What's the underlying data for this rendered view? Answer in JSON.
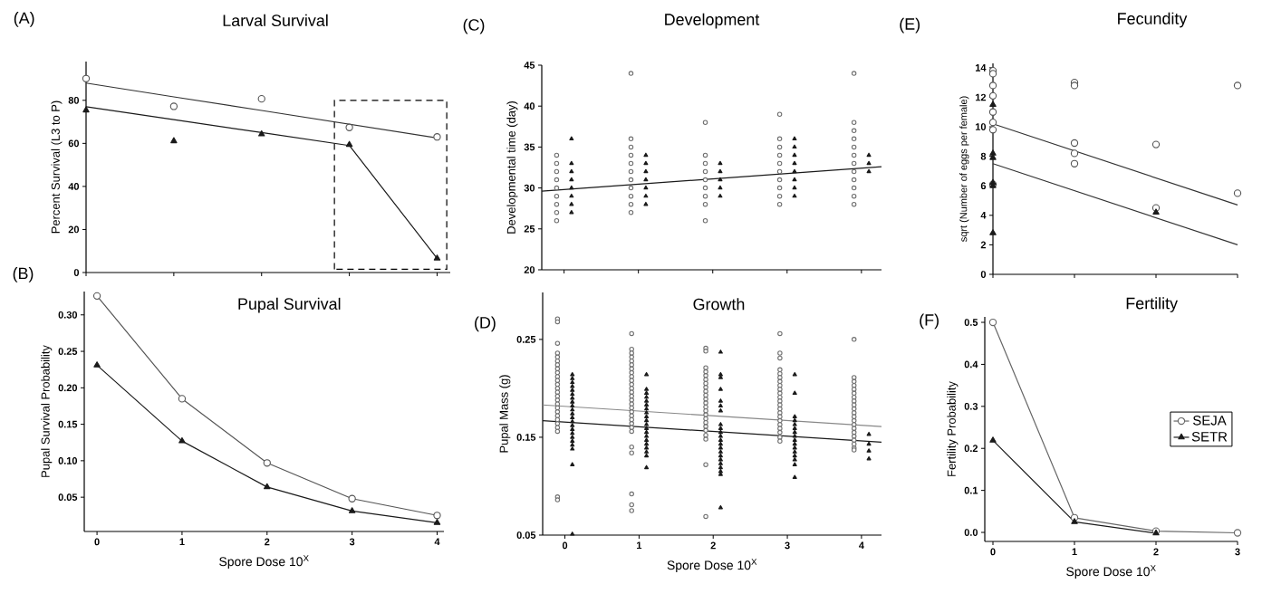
{
  "chart_data": [
    {
      "type": "scatter",
      "title": "Larval Survival",
      "ylabel": "Percent Survival (L3 to P)",
      "annotations": [
        "(A)"
      ],
      "categories": [
        null,
        null,
        null,
        null,
        null
      ],
      "ylim": [
        0,
        98
      ],
      "yticks": [
        0,
        20,
        40,
        60,
        80
      ],
      "tick_labels": "y",
      "series": [
        {
          "type": "line",
          "marker": "none",
          "color": "#333333",
          "values": [
            88,
            81.6,
            75.3,
            68.9,
            62.5
          ]
        },
        {
          "type": "line",
          "marker": "none",
          "color": "#1a1a1a",
          "values": [
            77,
            71,
            65,
            59,
            6.6
          ]
        },
        {
          "type": "scatter",
          "marker": "circle",
          "color": "#555555",
          "values": [
            90.1,
            77.2,
            80.7,
            67.4,
            63
          ]
        },
        {
          "type": "scatter",
          "marker": "triangle",
          "color": "#1a1a1a",
          "values": [
            75.4,
            61.1,
            64.3,
            59.4,
            6.6
          ]
        }
      ]
    },
    {
      "type": "line",
      "title": "Pupal Survival",
      "xlabel": "Spore Dose 10$^{X}$",
      "ylabel": "Pupal Survival Probability",
      "annotations": [
        "(B)"
      ],
      "xlim": [
        -0.15,
        4.08
      ],
      "ylim": [
        0.003,
        0.332
      ],
      "xticks": [
        0,
        1,
        2,
        3,
        4
      ],
      "yticks": [
        {
          "value": 0.05,
          "label": "0.05"
        },
        {
          "value": 0.1,
          "label": "0.10"
        },
        {
          "value": 0.15,
          "label": "0.15"
        },
        {
          "value": 0.2,
          "label": "0.20"
        },
        {
          "value": 0.25,
          "label": "0.25"
        },
        {
          "value": 0.3,
          "label": "0.30"
        }
      ],
      "series": [
        {
          "marker": "circle",
          "color": "#555555",
          "x": [
            0,
            1,
            2,
            3,
            4
          ],
          "values": [
            0.326,
            0.185,
            0.097,
            0.048,
            0.025
          ]
        },
        {
          "marker": "triangle",
          "color": "#1a1a1a",
          "x": [
            0,
            1,
            2,
            3,
            4
          ],
          "values": [
            0.231,
            0.127,
            0.064,
            0.031,
            0.015
          ]
        }
      ]
    },
    {
      "type": "scatter",
      "title": "Development",
      "ylabel": "Developmental time (day)",
      "annotations": [
        "(C)"
      ],
      "xlim": [
        -0.3,
        4.27
      ],
      "ylim": [
        20,
        45
      ],
      "xticks": [
        {
          "value": 0,
          "label": null
        },
        {
          "value": 1,
          "label": null
        },
        {
          "value": 2,
          "label": null
        },
        {
          "value": 3,
          "label": null
        },
        {
          "value": 4,
          "label": null
        }
      ],
      "yticks": [
        20,
        25,
        30,
        35,
        40,
        45
      ],
      "tick_labels": "y",
      "series": [
        {
          "marker": "circle",
          "color": "#707070",
          "x": [
            -0.1,
            -0.1,
            -0.1,
            -0.1,
            -0.1,
            -0.1,
            -0.1,
            -0.1,
            -0.1,
            0.9,
            0.9,
            0.9,
            0.9,
            0.9,
            0.9,
            0.9,
            0.9,
            0.9,
            0.9,
            0.9,
            1.9,
            1.9,
            1.9,
            1.9,
            1.9,
            1.9,
            1.9,
            1.9,
            1.9,
            2.9,
            2.9,
            2.9,
            2.9,
            2.9,
            2.9,
            2.9,
            2.9,
            2.9,
            2.9,
            3.9,
            3.9,
            3.9,
            3.9,
            3.9,
            3.9,
            3.9,
            3.9,
            3.9,
            3.9,
            3.9,
            3.9
          ],
          "values": [
            26,
            27,
            28,
            29,
            30,
            31,
            32,
            33,
            34,
            44,
            36,
            35,
            34,
            33,
            32,
            31,
            30,
            29,
            28,
            27,
            38,
            34,
            33,
            32,
            31,
            30,
            29,
            28,
            26,
            39,
            36,
            35,
            34,
            33,
            32,
            31,
            30,
            29,
            28,
            44,
            38,
            37,
            36,
            35,
            34,
            33,
            32,
            31,
            30,
            29,
            28
          ]
        },
        {
          "marker": "triangle",
          "color": "#1a1a1a",
          "x": [
            0.1,
            0.1,
            0.1,
            0.1,
            0.1,
            0.1,
            0.1,
            0.1,
            1.1,
            1.1,
            1.1,
            1.1,
            1.1,
            1.1,
            1.1,
            2.1,
            2.1,
            2.1,
            2.1,
            2.1,
            3.1,
            3.1,
            3.1,
            3.1,
            3.1,
            3.1,
            3.1,
            3.1,
            4.1,
            4.1,
            4.1
          ],
          "values": [
            36,
            33,
            32,
            31,
            30,
            29,
            28,
            27,
            34,
            33,
            32,
            31,
            30,
            29,
            28,
            33,
            32,
            31,
            30,
            29,
            36,
            35,
            34,
            33,
            32,
            31,
            30,
            29,
            34,
            33,
            32
          ]
        },
        {
          "type": "line",
          "marker": "none",
          "color": "#1a1a1a",
          "x": [
            -0.3,
            4.27
          ],
          "values": [
            29.6,
            32.6
          ]
        }
      ]
    },
    {
      "type": "scatter",
      "title": "Growth",
      "xlabel": "Spore Dose 10$^{X}$",
      "ylabel": "Pupal Mass (g)",
      "annotations": [
        "(D)"
      ],
      "xlim": [
        -0.3,
        4.27
      ],
      "ylim": [
        0.05,
        0.298
      ],
      "xticks": [
        0,
        1,
        2,
        3,
        4
      ],
      "yticks": [
        {
          "value": 0.05,
          "label": "0.05"
        },
        {
          "value": 0.15,
          "label": "0.15"
        },
        {
          "value": 0.25,
          "label": "0.25"
        }
      ],
      "series": [
        {
          "marker": "circle",
          "color": "#707070",
          "x": [
            -0.1,
            -0.1,
            -0.1,
            -0.1,
            -0.1,
            -0.1,
            -0.1,
            -0.1,
            -0.1,
            -0.1,
            -0.1,
            -0.1,
            -0.1,
            -0.1,
            -0.1,
            -0.1,
            -0.1,
            -0.1,
            -0.1,
            -0.1,
            -0.1,
            -0.1,
            -0.1,
            -0.1,
            -0.1,
            -0.1,
            0.9,
            0.9,
            0.9,
            0.9,
            0.9,
            0.9,
            0.9,
            0.9,
            0.9,
            0.9,
            0.9,
            0.9,
            0.9,
            0.9,
            0.9,
            0.9,
            0.9,
            0.9,
            0.9,
            0.9,
            0.9,
            0.9,
            0.9,
            0.9,
            0.9,
            0.9,
            0.9,
            0.9,
            1.9,
            1.9,
            1.9,
            1.9,
            1.9,
            1.9,
            1.9,
            1.9,
            1.9,
            1.9,
            1.9,
            1.9,
            1.9,
            1.9,
            1.9,
            1.9,
            1.9,
            1.9,
            1.9,
            1.9,
            1.9,
            1.9,
            1.9,
            2.9,
            2.9,
            2.9,
            2.9,
            2.9,
            2.9,
            2.9,
            2.9,
            2.9,
            2.9,
            2.9,
            2.9,
            2.9,
            2.9,
            2.9,
            2.9,
            2.9,
            2.9,
            2.9,
            2.9,
            2.9,
            2.9,
            3.9,
            3.9,
            3.9,
            3.9,
            3.9,
            3.9,
            3.9,
            3.9,
            3.9,
            3.9,
            3.9,
            3.9,
            3.9,
            3.9,
            3.9,
            3.9,
            3.9,
            3.9,
            3.9,
            3.9,
            3.9
          ],
          "values": [
            0.271,
            0.268,
            0.246,
            0.236,
            0.232,
            0.228,
            0.224,
            0.22,
            0.216,
            0.212,
            0.208,
            0.204,
            0.2,
            0.196,
            0.192,
            0.188,
            0.184,
            0.18,
            0.176,
            0.172,
            0.168,
            0.164,
            0.16,
            0.156,
            0.089,
            0.086,
            0.256,
            0.24,
            0.236,
            0.232,
            0.228,
            0.224,
            0.22,
            0.216,
            0.212,
            0.208,
            0.204,
            0.2,
            0.196,
            0.192,
            0.188,
            0.184,
            0.18,
            0.176,
            0.172,
            0.168,
            0.164,
            0.16,
            0.156,
            0.14,
            0.134,
            0.092,
            0.081,
            0.075,
            0.241,
            0.238,
            0.221,
            0.217,
            0.213,
            0.209,
            0.205,
            0.201,
            0.197,
            0.193,
            0.189,
            0.185,
            0.181,
            0.177,
            0.173,
            0.169,
            0.165,
            0.161,
            0.157,
            0.152,
            0.148,
            0.122,
            0.069,
            0.256,
            0.236,
            0.231,
            0.219,
            0.215,
            0.211,
            0.207,
            0.203,
            0.199,
            0.195,
            0.191,
            0.187,
            0.183,
            0.179,
            0.175,
            0.171,
            0.167,
            0.163,
            0.159,
            0.155,
            0.15,
            0.146,
            0.25,
            0.211,
            0.207,
            0.203,
            0.199,
            0.195,
            0.191,
            0.187,
            0.183,
            0.179,
            0.175,
            0.171,
            0.167,
            0.163,
            0.159,
            0.155,
            0.151,
            0.147,
            0.143,
            0.139,
            0.137
          ]
        },
        {
          "marker": "triangle",
          "color": "#1a1a1a",
          "x": [
            0.1,
            0.1,
            0.1,
            0.1,
            0.1,
            0.1,
            0.1,
            0.1,
            0.1,
            0.1,
            0.1,
            0.1,
            0.1,
            0.1,
            0.1,
            0.1,
            0.1,
            0.1,
            0.1,
            0.1,
            0.1,
            0.1,
            1.1,
            1.1,
            1.1,
            1.1,
            1.1,
            1.1,
            1.1,
            1.1,
            1.1,
            1.1,
            1.1,
            1.1,
            1.1,
            1.1,
            1.1,
            1.1,
            1.1,
            1.1,
            1.1,
            1.1,
            2.1,
            2.1,
            2.1,
            2.1,
            2.1,
            2.1,
            2.1,
            2.1,
            2.1,
            2.1,
            2.1,
            2.1,
            2.1,
            2.1,
            2.1,
            2.1,
            2.1,
            2.1,
            2.1,
            2.1,
            2.1,
            2.1,
            3.1,
            3.1,
            3.1,
            3.1,
            3.1,
            3.1,
            3.1,
            3.1,
            3.1,
            3.1,
            3.1,
            3.1,
            3.1,
            3.1,
            3.1,
            3.1,
            4.1,
            4.1,
            4.1,
            4.1
          ],
          "values": [
            0.214,
            0.21,
            0.206,
            0.202,
            0.198,
            0.194,
            0.19,
            0.186,
            0.182,
            0.178,
            0.174,
            0.17,
            0.166,
            0.162,
            0.158,
            0.154,
            0.15,
            0.146,
            0.142,
            0.138,
            0.122,
            0.051,
            0.214,
            0.199,
            0.195,
            0.191,
            0.187,
            0.183,
            0.179,
            0.175,
            0.171,
            0.167,
            0.163,
            0.159,
            0.155,
            0.151,
            0.147,
            0.143,
            0.139,
            0.135,
            0.131,
            0.119,
            0.237,
            0.214,
            0.211,
            0.199,
            0.187,
            0.182,
            0.177,
            0.163,
            0.159,
            0.155,
            0.151,
            0.147,
            0.143,
            0.139,
            0.135,
            0.131,
            0.127,
            0.123,
            0.119,
            0.115,
            0.112,
            0.078,
            0.214,
            0.195,
            0.171,
            0.167,
            0.163,
            0.159,
            0.155,
            0.151,
            0.147,
            0.143,
            0.139,
            0.135,
            0.131,
            0.127,
            0.122,
            0.109,
            0.153,
            0.143,
            0.136,
            0.128
          ]
        },
        {
          "type": "line",
          "marker": "none",
          "color": "#888888",
          "x": [
            -0.3,
            4.27
          ],
          "values": [
            0.183,
            0.161
          ]
        },
        {
          "type": "line",
          "marker": "none",
          "color": "#1a1a1a",
          "x": [
            -0.3,
            4.27
          ],
          "values": [
            0.167,
            0.145
          ]
        }
      ]
    },
    {
      "type": "scatter",
      "title": "Fecundity",
      "ylabel": "sqrt (Number of eggs per female)",
      "annotations": [
        "(E)"
      ],
      "xlim": [
        0,
        3.0
      ],
      "ylim": [
        0,
        14.3
      ],
      "xticks": [
        0,
        1,
        2,
        3
      ],
      "yticks": [
        0,
        2,
        4,
        6,
        8,
        10,
        12,
        14
      ],
      "tick_labels": "y",
      "series": [
        {
          "type": "line",
          "marker": "none",
          "color": "#333333",
          "x": [
            0,
            3.0
          ],
          "values": [
            10.2,
            4.7
          ]
        },
        {
          "type": "line",
          "marker": "none",
          "color": "#333333",
          "x": [
            0,
            3.0
          ],
          "values": [
            7.5,
            2.0
          ]
        },
        {
          "marker": "circle",
          "color": "#555555",
          "x": [
            0,
            0,
            0,
            0,
            0,
            0,
            0,
            0,
            1,
            1,
            1,
            1,
            1,
            2,
            2,
            3,
            3
          ],
          "values": [
            13.8,
            13.6,
            12.8,
            12.1,
            11.0,
            10.3,
            9.8,
            6.1,
            13.0,
            12.8,
            8.9,
            8.2,
            7.5,
            8.8,
            4.5,
            12.8,
            5.5
          ]
        },
        {
          "marker": "triangle",
          "color": "#1a1a1a",
          "x": [
            0,
            0,
            0,
            0,
            0,
            0,
            2
          ],
          "values": [
            11.5,
            8.2,
            7.9,
            6.2,
            6.0,
            2.8,
            4.2
          ]
        }
      ]
    },
    {
      "type": "line",
      "title": "Fertility",
      "xlabel": "Spore Dose 10$^{X}$",
      "ylabel": "Fertility Probability",
      "annotations": [
        "(F)"
      ],
      "xlim": [
        -0.1,
        3.0
      ],
      "ylim": [
        -0.0215,
        0.513
      ],
      "xticks": [
        0,
        1,
        2,
        3
      ],
      "yticks": [
        {
          "value": 0,
          "label": "0.0"
        },
        {
          "value": 0.1,
          "label": "0.1"
        },
        {
          "value": 0.2,
          "label": "0.2"
        },
        {
          "value": 0.3,
          "label": "0.3"
        },
        {
          "value": 0.4,
          "label": "0.4"
        },
        {
          "value": 0.5,
          "label": "0.5"
        }
      ],
      "legend": "right",
      "series": [
        {
          "name": "SEJA",
          "marker": "circle",
          "color": "#666666",
          "x": [
            0,
            1,
            2,
            3
          ],
          "values": [
            0.5,
            0.035,
            0.003,
            -0.001
          ]
        },
        {
          "name": "SETR",
          "marker": "triangle",
          "color": "#1a1a1a",
          "x": [
            0,
            1,
            2
          ],
          "values": [
            0.219,
            0.025,
            -0.002
          ]
        }
      ]
    }
  ]
}
